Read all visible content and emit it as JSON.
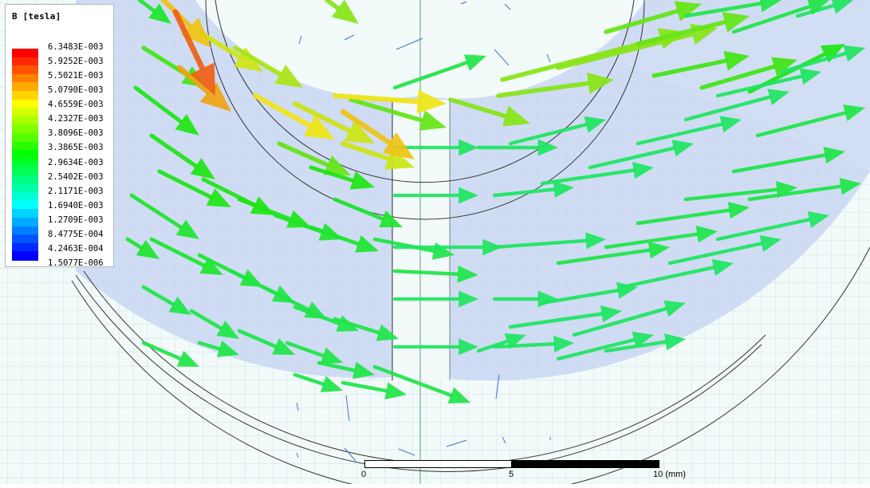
{
  "legend": {
    "title": "B [tesla]",
    "labels": [
      "6.3483E-003",
      "5.9252E-003",
      "5.5021E-003",
      "5.0790E-003",
      "4.6559E-003",
      "4.2327E-003",
      "3.8096E-003",
      "3.3865E-003",
      "2.9634E-003",
      "2.5402E-003",
      "2.1171E-003",
      "1.6940E-003",
      "1.2709E-003",
      "8.4775E-004",
      "4.2463E-004",
      "1.5077E-006"
    ],
    "colors": [
      "#ff0000",
      "#ff2a00",
      "#ff5500",
      "#ff8000",
      "#ffaa00",
      "#ffd400",
      "#ffff00",
      "#d4ff00",
      "#aaff00",
      "#80ff00",
      "#55ff00",
      "#2aff00",
      "#00ff00",
      "#00ff2a",
      "#00ff55",
      "#00ff80",
      "#00ffaa",
      "#00ffd4",
      "#00ffff",
      "#00d4ff",
      "#00aaff",
      "#0080ff",
      "#0055ff",
      "#002aff",
      "#0000ff"
    ]
  },
  "scale_bar": {
    "tick_0": "0",
    "tick_5": "5",
    "tick_10": "10 (mm)"
  }
}
